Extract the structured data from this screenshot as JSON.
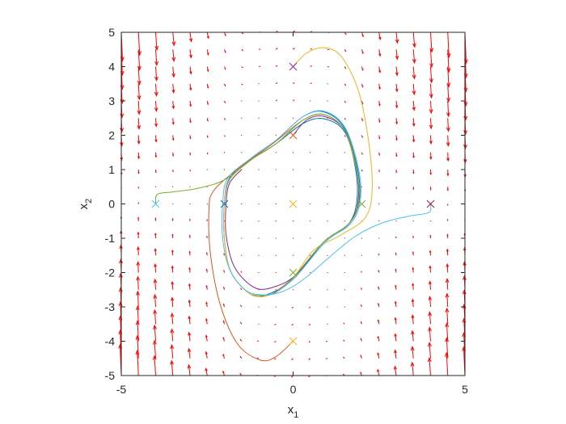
{
  "chart_data": {
    "type": "line",
    "title": "",
    "xlabel": {
      "base": "x",
      "sub": "1"
    },
    "ylabel": {
      "base": "x",
      "sub": "2"
    },
    "xlim": [
      -5,
      5
    ],
    "ylim": [
      -5,
      5
    ],
    "xticks": [
      "-5",
      "0",
      "5"
    ],
    "yticks": [
      "5",
      "4",
      "3",
      "2",
      "1",
      "0",
      "-1",
      "-2",
      "-3",
      "-4",
      "-5"
    ],
    "grid": false,
    "legend": "none",
    "vector_field": {
      "color": "#ff0000",
      "grid_x": [
        -5,
        -4.5,
        -4,
        -3.5,
        -3,
        -2.5,
        -2,
        -1.5,
        -1,
        -0.5,
        0,
        0.5,
        1,
        1.5,
        2,
        2.5,
        3,
        3.5,
        4,
        4.5,
        5
      ],
      "grid_y": [
        -5,
        -4.5,
        -4,
        -3.5,
        -3,
        -2.5,
        -2,
        -1.5,
        -1,
        -0.5,
        0,
        0.5,
        1,
        1.5,
        2,
        2.5,
        3,
        3.5,
        4,
        4.5,
        5
      ]
    },
    "series": [
      {
        "color": "#0072bd",
        "start": [
          -2,
          0
        ],
        "points": [
          [
            -2,
            0
          ],
          [
            -1.85,
            0.7
          ],
          [
            -1.2,
            1.3
          ],
          [
            -0.5,
            1.75
          ],
          [
            0.3,
            2.35
          ],
          [
            0.9,
            2.48
          ],
          [
            1.5,
            2.1
          ],
          [
            1.82,
            1.0
          ],
          [
            1.85,
            0.05
          ],
          [
            1.6,
            -0.6
          ],
          [
            0.9,
            -1.1
          ],
          [
            0.05,
            -2.15
          ],
          [
            -0.65,
            -2.6
          ],
          [
            -1.2,
            -2.65
          ],
          [
            -1.8,
            -2.0
          ],
          [
            -2.0,
            -1.0
          ],
          [
            -2.0,
            0
          ],
          [
            -1.85,
            0.75
          ],
          [
            -1.2,
            1.35
          ],
          [
            -0.5,
            1.85
          ],
          [
            0.3,
            2.55
          ],
          [
            0.9,
            2.68
          ],
          [
            1.5,
            2.2
          ],
          [
            1.88,
            1.0
          ],
          [
            1.92,
            0.05
          ],
          [
            1.6,
            -0.6
          ],
          [
            0.9,
            -1.1
          ],
          [
            0.0,
            -2.15
          ],
          [
            -0.6,
            -2.62
          ]
        ]
      },
      {
        "color": "#d95319",
        "start": [
          0,
          -4
        ],
        "points": [
          [
            0,
            -4
          ],
          [
            -0.5,
            -4.45
          ],
          [
            -0.95,
            -4.55
          ],
          [
            -1.6,
            -4.1
          ],
          [
            -2.1,
            -3.0
          ],
          [
            -2.4,
            -1.5
          ],
          [
            -2.45,
            -0.2
          ],
          [
            -2.3,
            0.4
          ],
          [
            -1.5,
            1.1
          ],
          [
            -0.6,
            1.75
          ],
          [
            0.3,
            2.45
          ],
          [
            0.9,
            2.6
          ],
          [
            1.5,
            2.15
          ],
          [
            1.85,
            1.0
          ],
          [
            1.9,
            0.0
          ],
          [
            1.6,
            -0.6
          ],
          [
            0.9,
            -1.1
          ],
          [
            0.0,
            -2.15
          ],
          [
            -0.6,
            -2.62
          ]
        ]
      },
      {
        "color": "#edb120",
        "start": [
          0,
          4
        ],
        "points": [
          [
            0,
            4
          ],
          [
            0.4,
            4.4
          ],
          [
            0.9,
            4.55
          ],
          [
            1.4,
            4.3
          ],
          [
            1.9,
            3.3
          ],
          [
            2.2,
            1.8
          ],
          [
            2.3,
            0.4
          ],
          [
            2.1,
            -0.4
          ],
          [
            1.4,
            -0.9
          ],
          [
            0.6,
            -1.35
          ],
          [
            0.0,
            -2.15
          ],
          [
            -0.6,
            -2.62
          ],
          [
            -1.2,
            -2.65
          ],
          [
            -1.8,
            -2.0
          ],
          [
            -2.0,
            -1.0
          ],
          [
            -2.0,
            0
          ],
          [
            -1.85,
            0.7
          ],
          [
            -1.2,
            1.3
          ],
          [
            -0.5,
            1.75
          ],
          [
            0.3,
            2.45
          ],
          [
            0.9,
            2.6
          ],
          [
            1.5,
            2.15
          ],
          [
            1.85,
            1.0
          ]
        ]
      },
      {
        "color": "#7e2f8e",
        "start": [
          0,
          2
        ],
        "points": [
          [
            0,
            2
          ],
          [
            0.4,
            2.45
          ],
          [
            0.9,
            2.55
          ],
          [
            1.5,
            2.15
          ],
          [
            1.85,
            1.0
          ],
          [
            1.88,
            0.0
          ],
          [
            1.6,
            -0.6
          ],
          [
            0.9,
            -1.1
          ],
          [
            0.1,
            -2.05
          ],
          [
            -0.5,
            -2.4
          ],
          [
            -1.1,
            -2.45
          ],
          [
            -1.7,
            -1.85
          ],
          [
            -1.95,
            -0.9
          ],
          [
            -1.95,
            0
          ],
          [
            -1.85,
            0.6
          ],
          [
            -1.5,
            1.0
          ]
        ]
      },
      {
        "color": "#77ac30",
        "start": [
          -4,
          0
        ],
        "points": [
          [
            -4,
            0
          ],
          [
            -3.95,
            0.28
          ],
          [
            -3.5,
            0.35
          ],
          [
            -2.8,
            0.45
          ],
          [
            -2.0,
            0.7
          ],
          [
            -1.2,
            1.3
          ],
          [
            -0.5,
            1.75
          ],
          [
            0.3,
            2.45
          ],
          [
            0.9,
            2.6
          ],
          [
            1.5,
            2.15
          ],
          [
            1.85,
            1.0
          ],
          [
            1.9,
            0.0
          ],
          [
            1.6,
            -0.6
          ],
          [
            0.9,
            -1.1
          ],
          [
            0.0,
            -2.15
          ],
          [
            -0.6,
            -2.62
          ],
          [
            -1.2,
            -2.65
          ]
        ]
      },
      {
        "color": "#4dbeee",
        "start": [
          4,
          0
        ],
        "points": [
          [
            4,
            0
          ],
          [
            3.95,
            -0.25
          ],
          [
            3.4,
            -0.35
          ],
          [
            2.6,
            -0.55
          ],
          [
            1.8,
            -0.95
          ],
          [
            1.0,
            -1.6
          ],
          [
            0.3,
            -2.2
          ],
          [
            -0.3,
            -2.55
          ],
          [
            -0.9,
            -2.65
          ],
          [
            -1.4,
            -2.5
          ],
          [
            -1.85,
            -1.9
          ],
          [
            -2.05,
            -1.0
          ],
          [
            -2.05,
            0
          ],
          [
            -1.9,
            0.75
          ],
          [
            -1.2,
            1.35
          ],
          [
            -0.5,
            1.85
          ],
          [
            0.3,
            2.55
          ],
          [
            0.9,
            2.7
          ],
          [
            1.5,
            2.25
          ],
          [
            1.9,
            1.05
          ],
          [
            1.95,
            0.05
          ],
          [
            1.65,
            -0.6
          ],
          [
            0.95,
            -1.1
          ],
          [
            0.05,
            -2.15
          ],
          [
            -0.6,
            -2.65
          ]
        ]
      },
      {
        "color": "#a2142f",
        "start": [
          2,
          0
        ],
        "points": []
      }
    ],
    "start_markers": [
      {
        "color": "#0072bd",
        "xy": [
          -2,
          0
        ]
      },
      {
        "color": "#d95319",
        "xy": [
          0,
          2
        ]
      },
      {
        "color": "#edb120",
        "xy": [
          0,
          0
        ]
      },
      {
        "color": "#7e2f8e",
        "xy": [
          0,
          4
        ]
      },
      {
        "color": "#77ac30",
        "xy": [
          2,
          0
        ]
      },
      {
        "color": "#4dbeee",
        "xy": [
          -4,
          0
        ]
      },
      {
        "color": "#a2142f",
        "xy": [
          4,
          0
        ]
      },
      {
        "color": "#77ac30",
        "xy": [
          0,
          -2
        ]
      },
      {
        "color": "#edb120",
        "xy": [
          0,
          -4
        ]
      }
    ]
  }
}
